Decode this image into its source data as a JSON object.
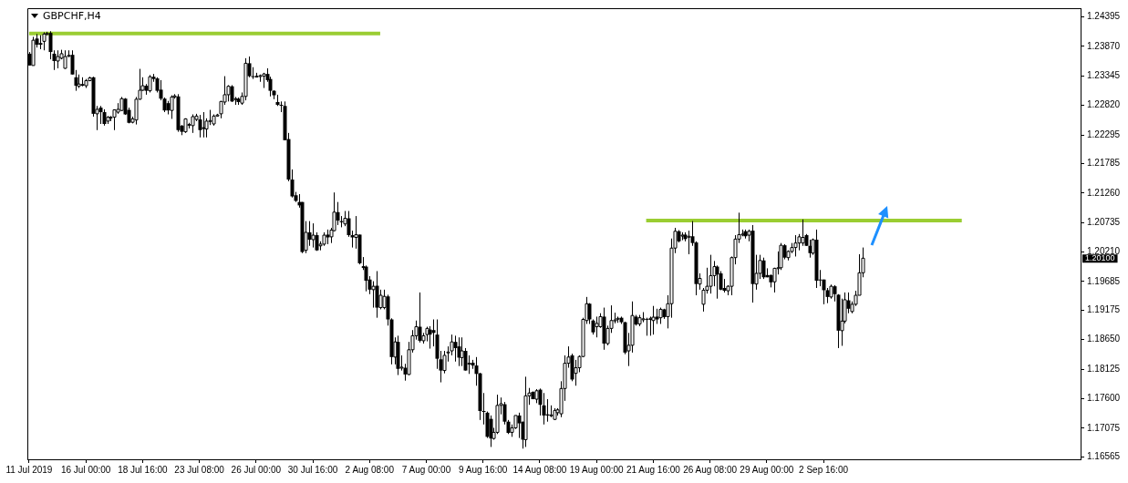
{
  "chart_data": {
    "type": "candlestick",
    "title": "GBPCHF,H4",
    "categories": [
      "11 Jul 2019",
      null,
      null,
      null,
      null,
      null,
      null,
      null,
      null,
      null,
      null,
      null,
      null,
      null,
      null,
      null,
      "16 Jul 00:00",
      null,
      null,
      null,
      null,
      null,
      null,
      null,
      null,
      null,
      null,
      null,
      null,
      null,
      null,
      null,
      "18 Jul 16:00",
      null,
      null,
      null,
      null,
      null,
      null,
      null,
      null,
      null,
      null,
      null,
      null,
      null,
      null,
      null,
      "23 Jul 08:00",
      null,
      null,
      null,
      null,
      null,
      null,
      null,
      null,
      null,
      null,
      null,
      null,
      null,
      null,
      null,
      "26 Jul 00:00",
      null,
      null,
      null,
      null,
      null,
      null,
      null,
      null,
      null,
      null,
      null,
      null,
      null,
      null,
      null,
      "30 Jul 16:00",
      null,
      null,
      null,
      null,
      null,
      null,
      null,
      null,
      null,
      null,
      null,
      null,
      null,
      null,
      null,
      "2 Aug 08:00",
      null,
      null,
      null,
      null,
      null,
      null,
      null,
      null,
      null,
      null,
      null,
      null,
      null,
      null,
      null,
      "7 Aug 00:00",
      null,
      null,
      null,
      null,
      null,
      null,
      null,
      null,
      null,
      null,
      null,
      null,
      null,
      null,
      null,
      "9 Aug 16:00",
      null,
      null,
      null,
      null,
      null,
      null,
      null,
      null,
      null,
      null,
      null,
      null,
      null,
      null,
      null,
      "14 Aug 08:00",
      null,
      null,
      null,
      null,
      null,
      null,
      null,
      null,
      null,
      null,
      null,
      null,
      null,
      null,
      null,
      "19 Aug 00:00",
      null,
      null,
      null,
      null,
      null,
      null,
      null,
      null,
      null,
      null,
      null,
      null,
      null,
      null,
      null,
      "21 Aug 16:00",
      null,
      null,
      null,
      null,
      null,
      null,
      null,
      null,
      null,
      null,
      null,
      null,
      null,
      null,
      null,
      "26 Aug 08:00",
      null,
      null,
      null,
      null,
      null,
      null,
      null,
      null,
      null,
      null,
      null,
      null,
      null,
      null,
      null,
      "29 Aug 00:00",
      null,
      null,
      null,
      null,
      null,
      null,
      null,
      null,
      null,
      null,
      null,
      null,
      null,
      null,
      null,
      "2 Sep 16:00",
      null,
      null,
      null,
      null,
      null,
      null,
      null,
      null,
      null,
      null,
      null,
      null,
      null,
      null,
      null,
      null,
      null,
      null,
      null,
      null,
      null,
      null,
      null,
      null,
      null,
      null,
      null,
      null,
      null,
      null,
      null,
      null,
      null,
      null,
      null,
      null,
      null,
      null,
      null,
      null,
      null,
      null,
      null,
      null,
      null,
      null,
      null,
      null,
      null,
      null,
      null,
      null,
      null,
      null,
      null,
      null,
      null,
      null,
      null,
      null,
      null,
      null,
      null,
      null,
      null,
      null,
      null,
      null,
      null,
      null,
      null,
      null
    ],
    "ohlc": [
      [
        1.2374,
        1.2377,
        1.2353,
        1.2353
      ],
      [
        1.2353,
        1.2404,
        1.2353,
        1.2398
      ],
      [
        1.2401,
        1.2409,
        1.2385,
        1.239
      ],
      [
        1.2393,
        1.2407,
        1.2382,
        1.239
      ],
      [
        1.2396,
        1.2412,
        1.238,
        1.2409
      ],
      [
        1.2409,
        1.2413,
        1.2407,
        1.241
      ],
      [
        1.2411,
        1.2414,
        1.2364,
        1.2377
      ],
      [
        1.2374,
        1.238,
        1.2345,
        1.2361
      ],
      [
        1.2361,
        1.238,
        1.2348,
        1.2369
      ],
      [
        1.2366,
        1.2381,
        1.2364,
        1.2374
      ],
      [
        1.2348,
        1.238,
        1.2347,
        1.2369
      ],
      [
        1.237,
        1.238,
        1.2368,
        1.2371
      ],
      [
        1.2372,
        1.238,
        1.2337,
        1.2337
      ],
      [
        1.2332,
        1.2345,
        1.2308,
        1.2317
      ],
      [
        1.2316,
        1.2337,
        1.2313,
        1.232
      ],
      [
        1.232,
        1.2332,
        1.2316,
        1.2317
      ],
      [
        1.2317,
        1.2329,
        1.2313,
        1.2326
      ],
      [
        1.2326,
        1.2333,
        1.2325,
        1.2331
      ],
      [
        1.2332,
        1.2333,
        1.2262,
        1.2267
      ],
      [
        1.2267,
        1.2281,
        1.2238,
        1.2275
      ],
      [
        1.2278,
        1.2281,
        1.2249,
        1.227
      ],
      [
        1.227,
        1.2275,
        1.2246,
        1.2249
      ],
      [
        1.2254,
        1.2263,
        1.2249,
        1.2261
      ],
      [
        1.2261,
        1.2263,
        1.2254,
        1.2261
      ],
      [
        1.2261,
        1.2275,
        1.2238,
        1.2274
      ],
      [
        1.227,
        1.2286,
        1.2267,
        1.2275
      ],
      [
        1.2273,
        1.2297,
        1.2272,
        1.2294
      ],
      [
        1.2294,
        1.2295,
        1.2265,
        1.2266
      ],
      [
        1.2274,
        1.2278,
        1.225,
        1.2251
      ],
      [
        1.2252,
        1.2262,
        1.225,
        1.2258
      ],
      [
        1.2256,
        1.2297,
        1.2248,
        1.2293
      ],
      [
        1.2293,
        1.2347,
        1.2292,
        1.2309
      ],
      [
        1.2309,
        1.2332,
        1.2308,
        1.2317
      ],
      [
        1.2317,
        1.232,
        1.2301,
        1.2308
      ],
      [
        1.2308,
        1.2336,
        1.2305,
        1.2333
      ],
      [
        1.2333,
        1.2338,
        1.2324,
        1.2329
      ],
      [
        1.233,
        1.2332,
        1.2305,
        1.2308
      ],
      [
        1.231,
        1.2327,
        1.2291,
        1.2294
      ],
      [
        1.2294,
        1.2296,
        1.227,
        1.2273
      ],
      [
        1.2286,
        1.229,
        1.2266,
        1.2273
      ],
      [
        1.2273,
        1.23,
        1.2258,
        1.2297
      ],
      [
        1.2297,
        1.2302,
        1.2294,
        1.2299
      ],
      [
        1.2298,
        1.2302,
        1.2235,
        1.2238
      ],
      [
        1.2246,
        1.2247,
        1.2229,
        1.2235
      ],
      [
        1.2235,
        1.2259,
        1.2233,
        1.2258
      ],
      [
        1.2247,
        1.2251,
        1.2241,
        1.2248
      ],
      [
        1.2246,
        1.2266,
        1.2233,
        1.2262
      ],
      [
        1.2257,
        1.2267,
        1.2254,
        1.2263
      ],
      [
        1.2257,
        1.2265,
        1.2225,
        1.2238
      ],
      [
        1.2243,
        1.227,
        1.2225,
        1.224
      ],
      [
        1.224,
        1.2259,
        1.2225,
        1.2254
      ],
      [
        1.2254,
        1.2274,
        1.2247,
        1.2255
      ],
      [
        1.2249,
        1.2266,
        1.2246,
        1.2263
      ],
      [
        1.2263,
        1.2267,
        1.2262,
        1.2265
      ],
      [
        1.2267,
        1.229,
        1.2259,
        1.2289
      ],
      [
        1.2288,
        1.2334,
        1.2283,
        1.2301
      ],
      [
        1.2301,
        1.2318,
        1.2289,
        1.2316
      ],
      [
        1.2316,
        1.2318,
        1.2288,
        1.2289
      ],
      [
        1.2293,
        1.2297,
        1.2283,
        1.2294
      ],
      [
        1.2294,
        1.2296,
        1.2283,
        1.2288
      ],
      [
        1.2286,
        1.2305,
        1.2283,
        1.2298
      ],
      [
        1.2298,
        1.2366,
        1.2291,
        1.2357
      ],
      [
        1.2357,
        1.2369,
        1.2332,
        1.2334
      ],
      [
        1.2334,
        1.235,
        1.2329,
        1.2333
      ],
      [
        1.2333,
        1.234,
        1.2332,
        1.2334
      ],
      [
        1.2334,
        1.2337,
        1.2324,
        1.2335
      ],
      [
        1.2334,
        1.234,
        1.2313,
        1.2338
      ],
      [
        1.2338,
        1.2348,
        1.2324,
        1.2327
      ],
      [
        1.2329,
        1.2333,
        1.2298,
        1.2308
      ],
      [
        1.2308,
        1.2309,
        1.2293,
        1.23
      ],
      [
        1.2288,
        1.2301,
        1.2281,
        1.2283
      ],
      [
        1.2283,
        1.2289,
        1.227,
        1.2282
      ],
      [
        1.2281,
        1.2289,
        1.222,
        1.222
      ],
      [
        1.2222,
        1.2233,
        1.2147,
        1.215
      ],
      [
        1.215,
        1.2168,
        1.2118,
        1.212
      ],
      [
        1.2122,
        1.2128,
        1.211,
        1.2112
      ],
      [
        1.211,
        1.2124,
        1.21,
        1.2104
      ],
      [
        1.211,
        1.211,
        1.2019,
        1.2021
      ],
      [
        1.2024,
        1.2076,
        1.2019,
        1.2056
      ],
      [
        1.2056,
        1.2076,
        1.2032,
        1.2043
      ],
      [
        1.2043,
        1.2072,
        1.2029,
        1.2051
      ],
      [
        1.2051,
        1.2056,
        1.2023,
        1.2024
      ],
      [
        1.2032,
        1.204,
        1.2024,
        1.2035
      ],
      [
        1.2035,
        1.2056,
        1.2032,
        1.2051
      ],
      [
        1.2052,
        1.2061,
        1.2035,
        1.2047
      ],
      [
        1.2048,
        1.2064,
        1.2037,
        1.206
      ],
      [
        1.2059,
        1.2127,
        1.2058,
        1.2092
      ],
      [
        1.2092,
        1.211,
        1.2069,
        1.2077
      ],
      [
        1.2076,
        1.2085,
        1.2065,
        1.2074
      ],
      [
        1.2071,
        1.2094,
        1.2067,
        1.2081
      ],
      [
        1.2081,
        1.2094,
        1.2048,
        1.2051
      ],
      [
        1.2051,
        1.2059,
        1.2029,
        1.2047
      ],
      [
        1.2047,
        1.2085,
        1.2027,
        1.2052
      ],
      [
        1.2052,
        1.2052,
        1.1999,
        1.2001
      ],
      [
        1.1994,
        1.2012,
        1.1989,
        1.1995
      ],
      [
        1.1995,
        1.1997,
        1.1951,
        1.197
      ],
      [
        1.1972,
        1.1978,
        1.1946,
        1.1954
      ],
      [
        1.1954,
        1.1969,
        1.1922,
        1.196
      ],
      [
        1.1961,
        1.1987,
        1.1904,
        1.1922
      ],
      [
        1.1922,
        1.1954,
        1.1919,
        1.1944
      ],
      [
        1.1922,
        1.1954,
        1.1919,
        1.1942
      ],
      [
        1.1942,
        1.1945,
        1.189,
        1.1901
      ],
      [
        1.1901,
        1.1903,
        1.1821,
        1.1834
      ],
      [
        1.1834,
        1.1869,
        1.1821,
        1.1861
      ],
      [
        1.1861,
        1.1872,
        1.1802,
        1.1813
      ],
      [
        1.1815,
        1.1837,
        1.181,
        1.1816
      ],
      [
        1.1815,
        1.1822,
        1.1792,
        1.1803
      ],
      [
        1.1803,
        1.1861,
        1.1802,
        1.1847
      ],
      [
        1.1847,
        1.1882,
        1.1842,
        1.1872
      ],
      [
        1.1872,
        1.1899,
        1.1865,
        1.1888
      ],
      [
        1.1888,
        1.1949,
        1.186,
        1.1863
      ],
      [
        1.1863,
        1.1877,
        1.1858,
        1.1872
      ],
      [
        1.1874,
        1.1888,
        1.1862,
        1.1885
      ],
      [
        1.1883,
        1.1889,
        1.1849,
        1.1874
      ],
      [
        1.1882,
        1.1901,
        1.1853,
        1.1877
      ],
      [
        1.1874,
        1.1901,
        1.1813,
        1.1831
      ],
      [
        1.183,
        1.1845,
        1.1789,
        1.181
      ],
      [
        1.181,
        1.1845,
        1.1805,
        1.1837
      ],
      [
        1.1842,
        1.1853,
        1.1826,
        1.1843
      ],
      [
        1.1845,
        1.1874,
        1.1837,
        1.1861
      ],
      [
        1.1861,
        1.1872,
        1.1826,
        1.185
      ],
      [
        1.1853,
        1.1869,
        1.1818,
        1.1833
      ],
      [
        1.1833,
        1.1869,
        1.1818,
        1.1845
      ],
      [
        1.1845,
        1.185,
        1.181,
        1.181
      ],
      [
        1.1822,
        1.1837,
        1.1804,
        1.1823
      ],
      [
        1.1824,
        1.1829,
        1.1813,
        1.1819
      ],
      [
        1.1819,
        1.1834,
        1.1783,
        1.1804
      ],
      [
        1.1805,
        1.1806,
        1.1722,
        1.1738
      ],
      [
        1.1738,
        1.177,
        1.1714,
        1.1737
      ],
      [
        1.1735,
        1.1737,
        1.169,
        1.1692
      ],
      [
        1.1724,
        1.173,
        1.1674,
        1.1689
      ],
      [
        1.1689,
        1.1708,
        1.1687,
        1.17
      ],
      [
        1.17,
        1.1767,
        1.1697,
        1.1748
      ],
      [
        1.1748,
        1.1762,
        1.1732,
        1.1751
      ],
      [
        1.175,
        1.1754,
        1.1714,
        1.1719
      ],
      [
        1.1719,
        1.1722,
        1.1697,
        1.1699
      ],
      [
        1.17,
        1.1714,
        1.1692,
        1.1708
      ],
      [
        1.1708,
        1.173,
        1.1706,
        1.173
      ],
      [
        1.173,
        1.1735,
        1.169,
        1.1716
      ],
      [
        1.1719,
        1.1719,
        1.1671,
        1.1687
      ],
      [
        1.1687,
        1.1799,
        1.1674,
        1.1765
      ],
      [
        1.1765,
        1.1779,
        1.1749,
        1.177
      ],
      [
        1.1772,
        1.1773,
        1.1759,
        1.1759
      ],
      [
        1.1759,
        1.1777,
        1.1752,
        1.1774
      ],
      [
        1.1776,
        1.1778,
        1.173,
        1.1749
      ],
      [
        1.1748,
        1.177,
        1.1714,
        1.173
      ],
      [
        1.1732,
        1.1759,
        1.1719,
        1.173
      ],
      [
        1.173,
        1.1748,
        1.1727,
        1.1731
      ],
      [
        1.1723,
        1.1743,
        1.1722,
        1.1739
      ],
      [
        1.1735,
        1.1743,
        1.173,
        1.174
      ],
      [
        1.1733,
        1.1791,
        1.1727,
        1.1778
      ],
      [
        1.1778,
        1.1837,
        1.1756,
        1.1823
      ],
      [
        1.1823,
        1.1853,
        1.1815,
        1.1834
      ],
      [
        1.1837,
        1.184,
        1.1791,
        1.1794
      ],
      [
        1.1805,
        1.1829,
        1.1783,
        1.1815
      ],
      [
        1.1815,
        1.1837,
        1.1807,
        1.1835
      ],
      [
        1.1835,
        1.1904,
        1.1834,
        1.1901
      ],
      [
        1.1899,
        1.1941,
        1.1893,
        1.1929
      ],
      [
        1.1929,
        1.193,
        1.1893,
        1.1901
      ],
      [
        1.1899,
        1.1901,
        1.1874,
        1.1878
      ],
      [
        1.1888,
        1.1906,
        1.1869,
        1.1894
      ],
      [
        1.1888,
        1.1912,
        1.1886,
        1.1906
      ],
      [
        1.1906,
        1.1922,
        1.1847,
        1.1858
      ],
      [
        1.1858,
        1.189,
        1.1855,
        1.1885
      ],
      [
        1.1885,
        1.1926,
        1.1877,
        1.1899
      ],
      [
        1.1899,
        1.1913,
        1.1894,
        1.19
      ],
      [
        1.1902,
        1.1906,
        1.1895,
        1.1903
      ],
      [
        1.1904,
        1.1906,
        1.1893,
        1.1896
      ],
      [
        1.1896,
        1.1897,
        1.1839,
        1.1842
      ],
      [
        1.1845,
        1.1877,
        1.1818,
        1.1855
      ],
      [
        1.1855,
        1.1933,
        1.1842,
        1.1908
      ],
      [
        1.1906,
        1.1909,
        1.189,
        1.1892
      ],
      [
        1.1893,
        1.1909,
        1.1889,
        1.1904
      ],
      [
        1.1901,
        1.1914,
        1.1896,
        1.1902
      ],
      [
        1.1902,
        1.1904,
        1.1872,
        1.1901
      ],
      [
        1.1901,
        1.1906,
        1.1872,
        1.1903
      ],
      [
        1.1899,
        1.1925,
        1.1874,
        1.1905
      ],
      [
        1.1906,
        1.192,
        1.1893,
        1.1901
      ],
      [
        1.1904,
        1.1922,
        1.1893,
        1.1919
      ],
      [
        1.1919,
        1.192,
        1.1902,
        1.1905
      ],
      [
        1.1906,
        1.1944,
        1.1885,
        1.1929
      ],
      [
        1.1929,
        1.2045,
        1.1904,
        1.2028
      ],
      [
        1.2028,
        1.2064,
        1.2019,
        1.2058
      ],
      [
        1.2058,
        1.206,
        1.2038,
        1.204
      ],
      [
        1.205,
        1.2056,
        1.2042,
        1.2051
      ],
      [
        1.2052,
        1.2056,
        1.204,
        1.2044
      ],
      [
        1.2048,
        1.2059,
        1.2017,
        1.2049
      ],
      [
        1.2049,
        1.2076,
        1.2032,
        1.2037
      ],
      [
        1.2038,
        1.204,
        1.1944,
        1.1964
      ],
      [
        1.1964,
        1.1983,
        1.1954,
        1.1974
      ],
      [
        1.1928,
        1.1957,
        1.1915,
        1.1953
      ],
      [
        1.1953,
        1.1993,
        1.1947,
        1.196
      ],
      [
        1.196,
        1.2016,
        1.1947,
        1.1979
      ],
      [
        1.1979,
        1.2005,
        1.196,
        1.1995
      ],
      [
        1.1995,
        1.1997,
        1.1938,
        1.1981
      ],
      [
        1.1983,
        1.1987,
        1.1953,
        1.1954
      ],
      [
        1.1957,
        1.1973,
        1.1949,
        1.1952
      ],
      [
        1.1952,
        1.1962,
        1.1944,
        1.196
      ],
      [
        1.196,
        1.2013,
        1.1944,
        1.2011
      ],
      [
        1.2011,
        1.2051,
        1.1999,
        1.2044
      ],
      [
        1.2044,
        1.2091,
        1.2037,
        1.2052
      ],
      [
        1.2052,
        1.2061,
        1.2049,
        1.2053
      ],
      [
        1.2058,
        1.2061,
        1.2045,
        1.2049
      ],
      [
        1.2051,
        1.2061,
        1.204,
        1.2058
      ],
      [
        1.2059,
        1.2069,
        1.1931,
        1.1964
      ],
      [
        1.1964,
        1.2016,
        1.1954,
        1.1983
      ],
      [
        1.1983,
        1.2016,
        1.1973,
        1.2006
      ],
      [
        1.2006,
        1.2011,
        1.1973,
        1.1976
      ],
      [
        1.198,
        1.1992,
        1.1976,
        1.1976
      ],
      [
        1.198,
        1.1981,
        1.1958,
        1.1967
      ],
      [
        1.1968,
        1.1993,
        1.1949,
        1.1992
      ],
      [
        1.1992,
        1.2022,
        1.1981,
        1.1993
      ],
      [
        1.1993,
        1.2037,
        1.1989,
        1.2033
      ],
      [
        1.2033,
        1.2035,
        1.2008,
        1.2011
      ],
      [
        1.2011,
        1.2024,
        1.2006,
        1.2022
      ],
      [
        1.2022,
        1.2037,
        1.2019,
        1.2029
      ],
      [
        1.2029,
        1.2051,
        1.2013,
        1.2037
      ],
      [
        1.2037,
        1.2053,
        1.2024,
        1.2048
      ],
      [
        1.2037,
        1.2079,
        1.2032,
        1.2047
      ],
      [
        1.2051,
        1.2053,
        1.2032,
        1.2032
      ],
      [
        1.2032,
        1.2043,
        1.2011,
        1.2019
      ],
      [
        1.2019,
        1.2045,
        1.2016,
        1.2043
      ],
      [
        1.2043,
        1.2061,
        1.1957,
        1.197
      ],
      [
        1.1972,
        1.1989,
        1.196,
        1.1971
      ],
      [
        1.1972,
        1.1972,
        1.1928,
        1.1953
      ],
      [
        1.1953,
        1.1957,
        1.193,
        1.1941
      ],
      [
        1.1941,
        1.1963,
        1.1938,
        1.196
      ],
      [
        1.196,
        1.1962,
        1.1933,
        1.1946
      ],
      [
        1.1945,
        1.1946,
        1.185,
        1.1881
      ],
      [
        1.1881,
        1.1938,
        1.1854,
        1.1898
      ],
      [
        1.1898,
        1.1949,
        1.1894,
        1.1936
      ],
      [
        1.1935,
        1.1949,
        1.1912,
        1.192
      ],
      [
        1.1915,
        1.1933,
        1.1912,
        1.1928
      ],
      [
        1.1928,
        1.1952,
        1.1925,
        1.1944
      ],
      [
        1.1944,
        1.2017,
        1.1944,
        1.1984
      ],
      [
        1.1984,
        1.2029,
        1.1976,
        1.201
      ],
      null,
      null,
      null,
      null,
      null,
      null,
      null,
      null,
      null,
      null,
      null,
      null,
      null,
      null,
      null,
      null,
      null,
      null,
      null,
      null,
      null,
      null,
      null,
      null,
      null,
      null,
      null,
      null,
      null,
      null,
      null,
      null,
      null,
      null,
      null,
      null,
      null,
      null,
      null,
      null,
      null,
      null,
      null,
      null,
      null,
      null,
      null,
      null,
      null,
      null,
      null,
      null,
      null,
      null,
      null,
      null,
      null,
      null,
      null,
      null,
      null
    ],
    "series": [
      {
        "type": "line",
        "color": "#9acd32",
        "values": [
          1.241,
          null,
          null,
          null,
          null,
          null,
          null,
          null,
          null,
          null,
          null,
          null,
          null,
          null,
          null,
          null,
          null,
          null,
          null,
          null,
          null,
          null,
          null,
          null,
          null,
          null,
          null,
          null,
          null,
          null,
          null,
          null,
          null,
          null,
          null,
          null,
          null,
          null,
          null,
          null,
          null,
          null,
          null,
          null,
          null,
          null,
          null,
          null,
          null,
          null,
          null,
          null,
          null,
          null,
          null,
          null,
          null,
          null,
          null,
          null,
          null,
          null,
          null,
          null,
          null,
          null,
          null,
          null,
          null,
          null,
          null,
          null,
          null,
          null,
          null,
          null,
          null,
          null,
          null,
          null,
          null,
          null,
          null,
          null,
          null,
          null,
          null,
          null,
          null,
          null,
          null,
          null,
          null,
          null,
          null,
          null,
          null,
          null,
          null,
          1.241,
          null,
          null,
          null,
          null,
          null,
          null,
          null,
          null,
          null,
          null,
          null,
          null,
          null,
          null,
          null,
          null,
          null,
          null,
          null,
          null,
          null,
          null,
          null,
          null,
          null,
          null,
          null,
          null,
          null,
          null,
          null,
          null,
          null,
          null,
          null,
          null,
          null,
          null,
          null,
          null,
          null,
          null,
          null,
          null,
          null,
          null,
          null,
          null,
          null,
          null,
          null,
          null,
          null,
          null,
          null,
          null,
          null,
          null,
          null,
          null,
          null,
          null,
          null,
          null,
          null,
          null,
          null,
          null,
          null,
          null,
          null,
          null,
          null,
          null,
          null,
          null,
          null,
          null,
          null,
          null,
          null,
          null,
          null,
          null,
          null,
          null,
          null,
          null,
          null,
          null,
          null,
          null,
          null,
          null,
          null,
          null,
          null,
          null,
          null,
          null,
          null,
          null,
          null,
          null,
          null,
          null,
          null,
          null,
          null,
          null,
          null,
          null,
          null,
          null,
          null,
          null,
          null,
          null,
          null,
          null,
          null,
          null,
          null,
          null,
          null,
          null,
          null,
          null,
          null,
          null,
          null,
          null,
          null,
          null,
          null,
          null,
          null,
          null,
          null,
          null,
          null,
          null,
          null,
          null,
          null,
          null,
          null,
          null,
          null,
          null,
          null,
          null,
          null,
          null,
          null,
          null,
          null,
          null,
          null,
          null,
          null,
          null,
          null,
          null,
          null,
          null,
          null,
          null,
          null,
          null,
          null,
          null,
          null,
          null,
          null,
          null,
          null,
          null,
          null,
          null,
          null,
          null,
          null,
          null,
          null,
          null,
          null,
          null,
          null,
          null,
          null,
          null,
          null,
          null,
          null,
          null,
          null
        ]
      },
      {
        "type": "line",
        "color": "#9acd32",
        "values": [
          null,
          null,
          null,
          null,
          null,
          null,
          null,
          null,
          null,
          null,
          null,
          null,
          null,
          null,
          null,
          null,
          null,
          null,
          null,
          null,
          null,
          null,
          null,
          null,
          null,
          null,
          null,
          null,
          null,
          null,
          null,
          null,
          null,
          null,
          null,
          null,
          null,
          null,
          null,
          null,
          null,
          null,
          null,
          null,
          null,
          null,
          null,
          null,
          null,
          null,
          null,
          null,
          null,
          null,
          null,
          null,
          null,
          null,
          null,
          null,
          null,
          null,
          null,
          null,
          null,
          null,
          null,
          null,
          null,
          null,
          null,
          null,
          null,
          null,
          null,
          null,
          null,
          null,
          null,
          null,
          null,
          null,
          null,
          null,
          null,
          null,
          null,
          null,
          null,
          null,
          null,
          null,
          null,
          null,
          null,
          null,
          null,
          null,
          null,
          null,
          null,
          null,
          null,
          null,
          null,
          null,
          null,
          null,
          null,
          null,
          null,
          null,
          null,
          null,
          null,
          null,
          null,
          null,
          null,
          null,
          null,
          null,
          null,
          null,
          null,
          null,
          null,
          null,
          null,
          null,
          null,
          null,
          null,
          null,
          null,
          null,
          null,
          null,
          null,
          null,
          null,
          null,
          null,
          null,
          null,
          null,
          null,
          null,
          null,
          null,
          null,
          null,
          null,
          null,
          null,
          null,
          null,
          null,
          null,
          null,
          null,
          null,
          null,
          null,
          null,
          null,
          null,
          null,
          null,
          null,
          null,
          null,
          null,
          null,
          1.2077,
          null,
          null,
          null,
          null,
          null,
          null,
          null,
          null,
          null,
          null,
          null,
          null,
          null,
          null,
          null,
          null,
          null,
          null,
          null,
          null,
          null,
          null,
          null,
          null,
          null,
          null,
          null,
          null,
          null,
          null,
          null,
          null,
          null,
          null,
          null,
          null,
          null,
          null,
          null,
          null,
          null,
          null,
          null,
          null,
          null,
          null,
          null,
          null,
          null,
          null,
          null,
          null,
          null,
          null,
          null,
          null,
          null,
          null,
          null,
          null,
          null,
          null,
          null,
          null,
          null,
          null,
          null,
          null,
          null,
          null,
          null,
          null,
          null,
          null,
          null,
          null,
          null,
          null,
          null,
          null,
          null,
          null,
          null,
          null,
          null,
          null,
          null,
          null,
          1.2077,
          null,
          null,
          null,
          null,
          null,
          null,
          null,
          null,
          null,
          null,
          null,
          null,
          null,
          null,
          null,
          null,
          null,
          null,
          null,
          null,
          null,
          null,
          null,
          null,
          null,
          null,
          null,
          null,
          null,
          null,
          null,
          null,
          null
        ]
      }
    ],
    "ylim": [
      1.1652,
      1.2455
    ],
    "yticks": [
      1.24395,
      {
        "value": 1.2387,
        "label": "1.23870"
      },
      1.23345,
      {
        "value": 1.2282,
        "label": "1.22820"
      },
      1.22295,
      1.21785,
      {
        "value": 1.2126,
        "label": "1.21260"
      },
      1.20735,
      {
        "value": 1.2021,
        "label": "1.20210"
      },
      1.19685,
      1.19175,
      {
        "value": 1.1865,
        "label": "1.18650"
      },
      1.18125,
      {
        "value": 1.176,
        "label": "1.17600"
      },
      1.17075,
      1.16565
    ],
    "annotations": [
      "1.20100"
    ]
  }
}
